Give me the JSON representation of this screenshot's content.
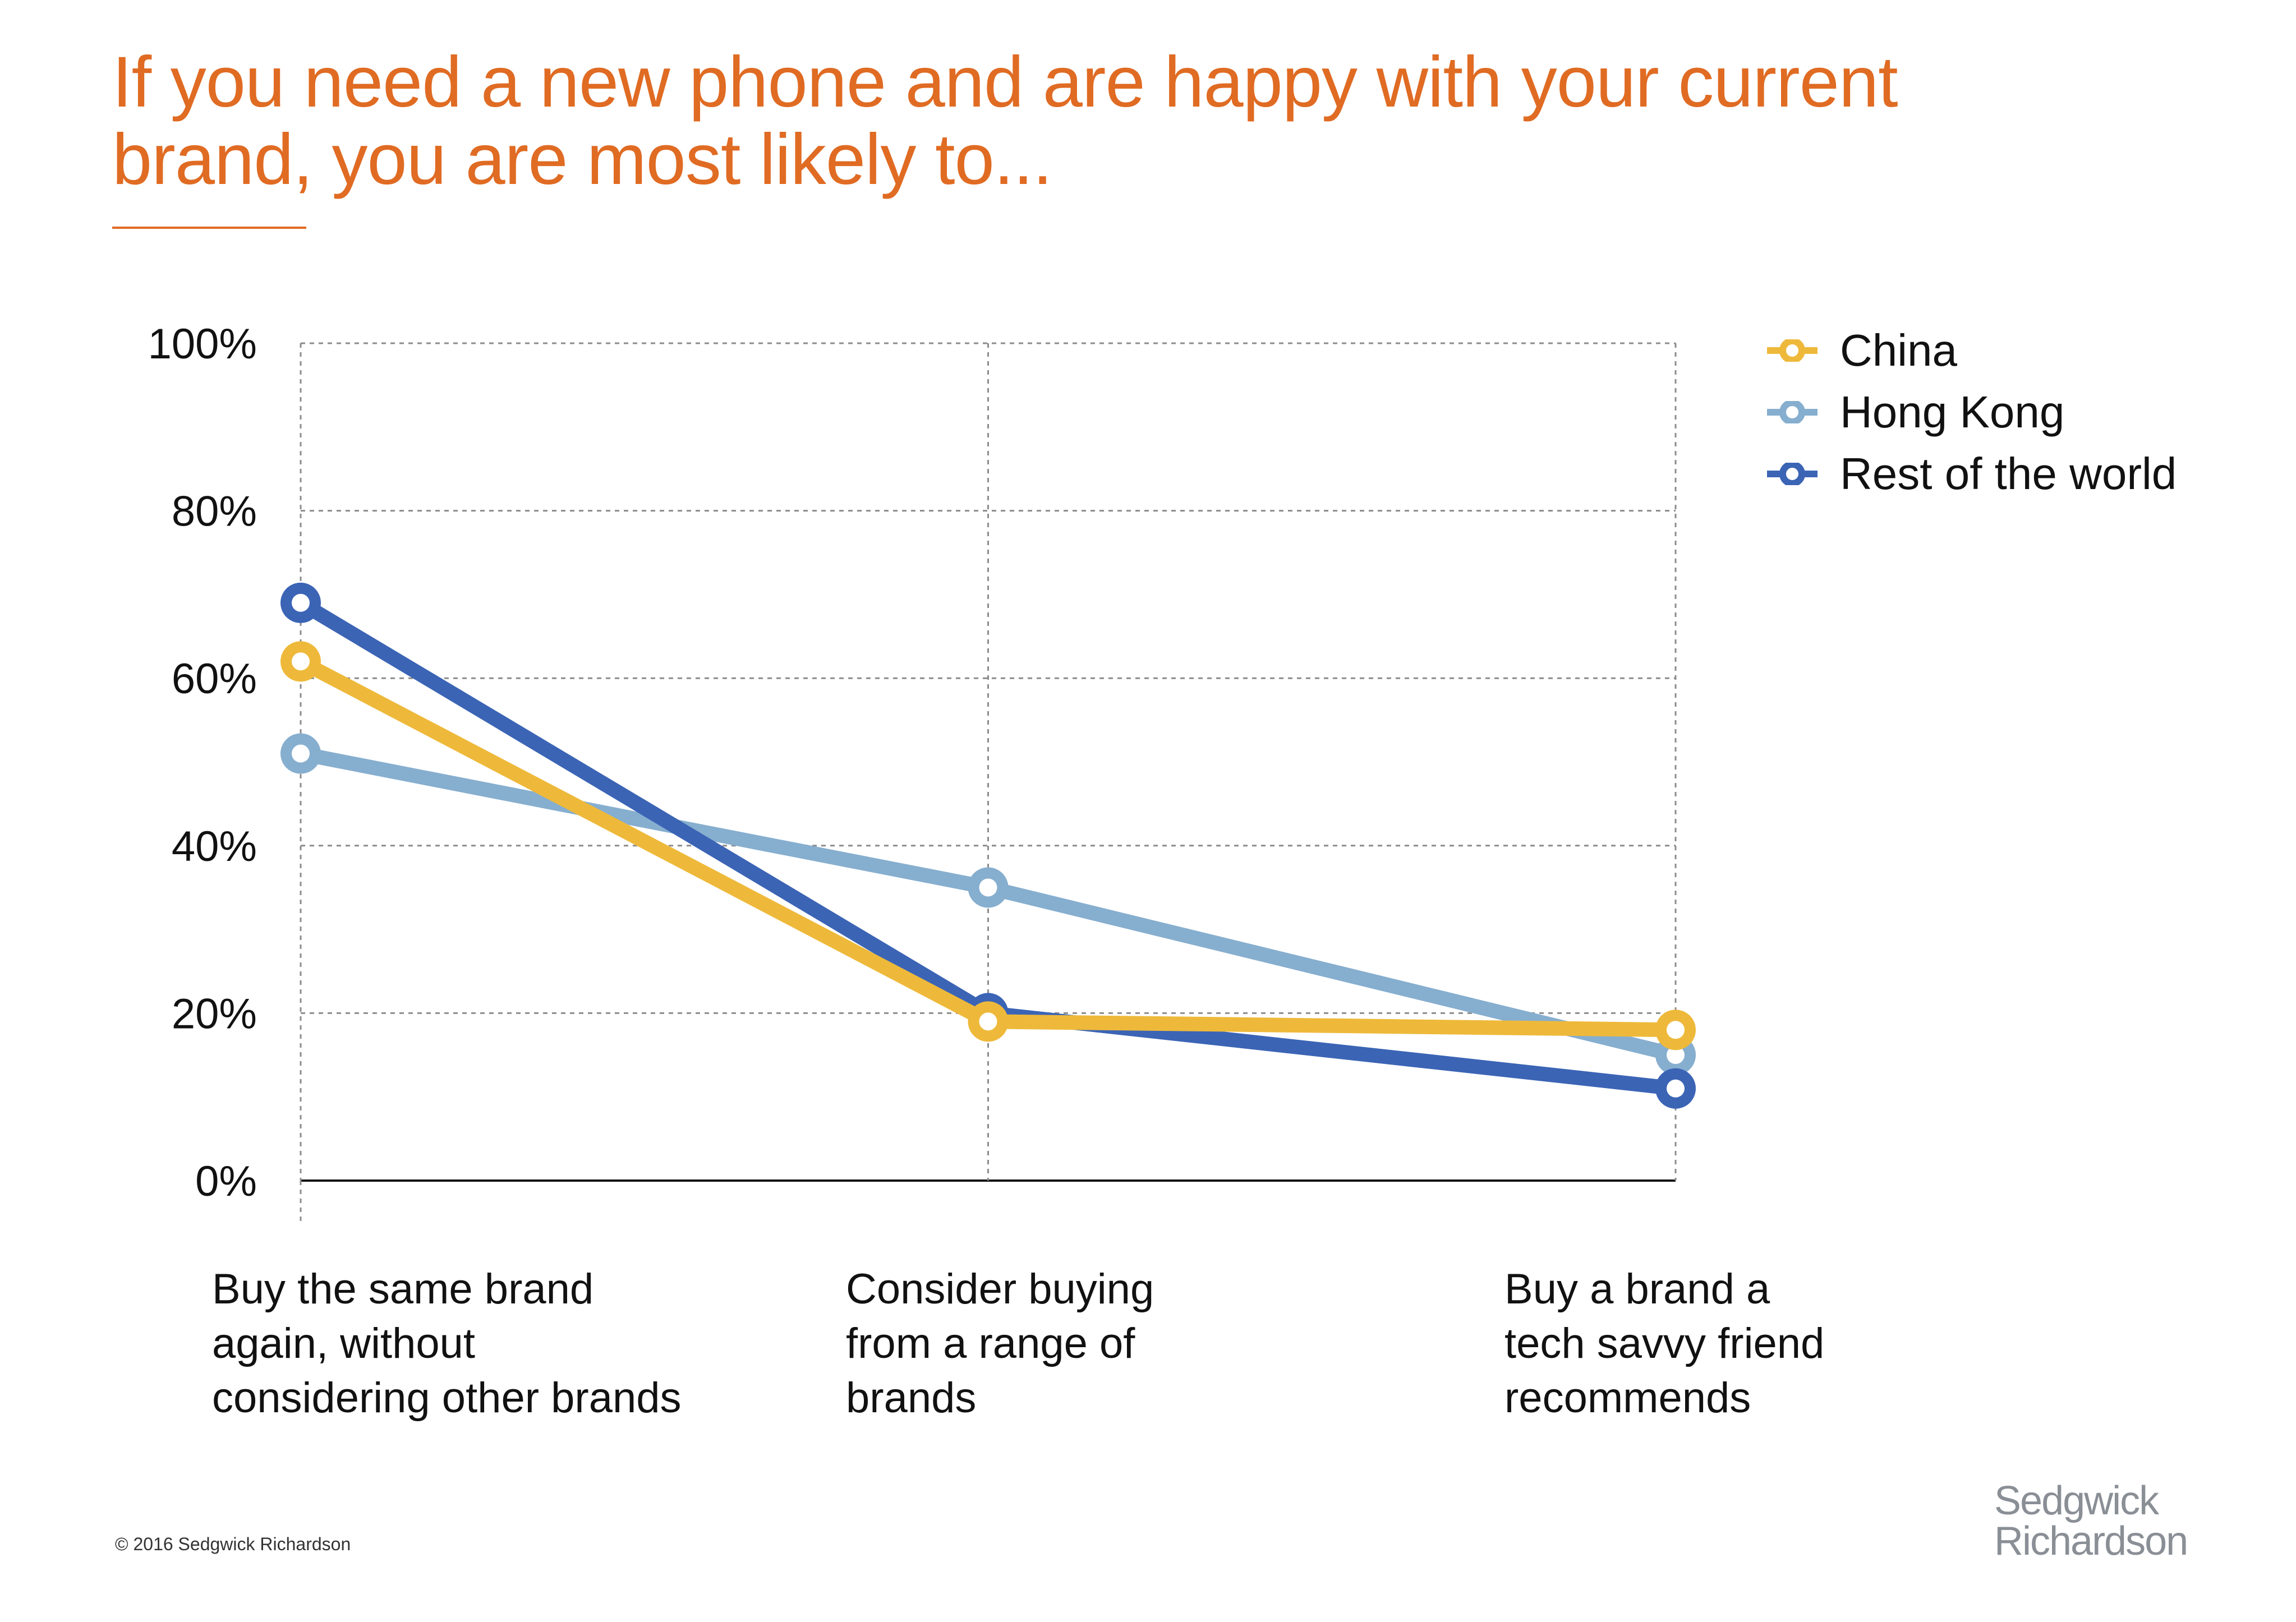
{
  "title_lines": [
    "If you need a new phone and are happy with your current",
    "brand, you are most likely to..."
  ],
  "footer": {
    "copyright": "© 2016 Sedgwick Richardson",
    "logo_line1": "Sedgwick",
    "logo_line2": "Richardson"
  },
  "colors": {
    "title": "#e06b23",
    "china": "#eeb93a",
    "hong_kong": "#86aecf",
    "rest_of_world": "#3b64b5"
  },
  "chart_data": {
    "type": "line",
    "title": "If you need a new phone and are happy with your current brand, you are most likely to...",
    "categories": [
      "Buy the same brand\nagain, without\nconsidering other brands",
      "Consider buying\nfrom a range of\nbrands",
      "Buy a brand a\ntech savvy friend\nrecommends"
    ],
    "y_ticks": [
      "0%",
      "20%",
      "40%",
      "60%",
      "80%",
      "100%"
    ],
    "ylim": [
      0,
      100
    ],
    "y_unit": "%",
    "grid": "dashed",
    "legend_position": "top-right",
    "series": [
      {
        "name": "China",
        "color": "#eeb93a",
        "values": [
          62,
          19,
          18
        ]
      },
      {
        "name": "Hong Kong",
        "color": "#86aecf",
        "values": [
          51,
          35,
          15
        ]
      },
      {
        "name": "Rest of the world",
        "color": "#3b64b5",
        "values": [
          69,
          20,
          11
        ]
      }
    ]
  }
}
